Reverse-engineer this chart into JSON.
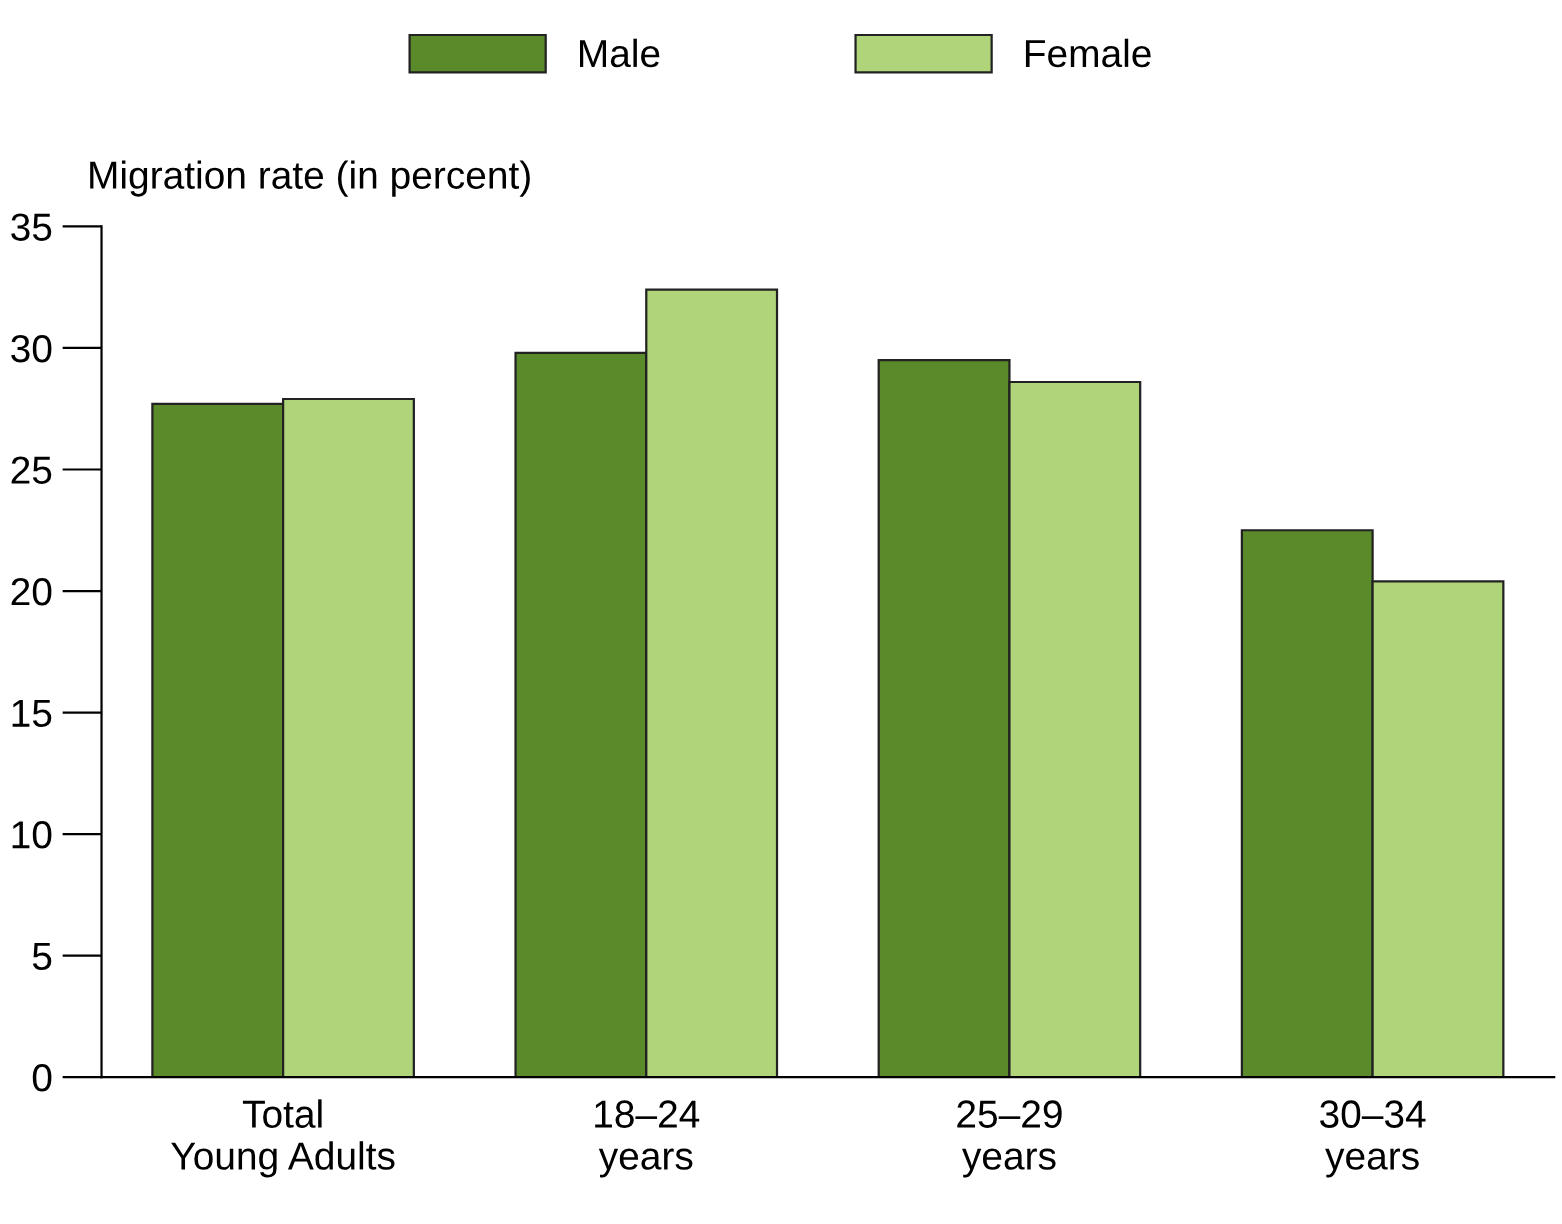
{
  "chart_data": {
    "type": "bar",
    "ylabel": "Migration rate (in percent)",
    "categories": [
      "Total\nYoung Adults",
      "18–24\nyears",
      "25–29\nyears",
      "30–34\nyears"
    ],
    "series": [
      {
        "name": "Male",
        "color": "#5a8a2a",
        "values": [
          27.7,
          29.8,
          29.5,
          22.5
        ]
      },
      {
        "name": "Female",
        "color": "#b0d47a",
        "values": [
          27.9,
          32.4,
          28.6,
          20.4
        ]
      }
    ],
    "ylim": [
      0,
      35
    ],
    "yticks": [
      0,
      5,
      10,
      15,
      20,
      25,
      30,
      35
    ],
    "grid": false,
    "legend": "top"
  }
}
